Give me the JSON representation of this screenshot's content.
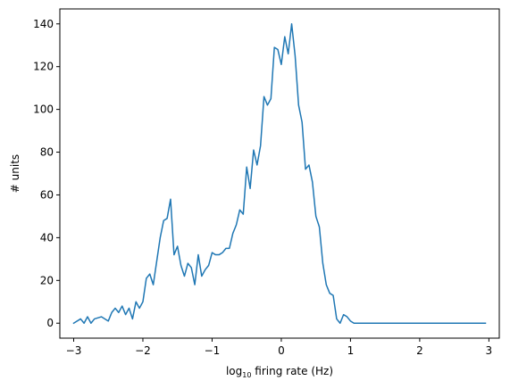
{
  "chart_data": {
    "type": "line",
    "title": "",
    "xlabel_prefix": "log",
    "xlabel_sub": "10",
    "xlabel_suffix": " firing rate (Hz)",
    "ylabel": "# units",
    "xlim": [
      -3.2,
      3.15
    ],
    "ylim": [
      -7,
      147
    ],
    "xticks": [
      -3,
      -2,
      -1,
      0,
      1,
      2,
      3
    ],
    "xtick_labels": [
      "−3",
      "−2",
      "−1",
      "0",
      "1",
      "2",
      "3"
    ],
    "yticks": [
      0,
      20,
      40,
      60,
      80,
      100,
      120,
      140
    ],
    "ytick_labels": [
      "0",
      "20",
      "40",
      "60",
      "80",
      "100",
      "120",
      "140"
    ],
    "grid": false,
    "series": [
      {
        "color": "#1f77b4",
        "x": [
          -3.0,
          -2.9,
          -2.85,
          -2.8,
          -2.75,
          -2.7,
          -2.6,
          -2.5,
          -2.45,
          -2.4,
          -2.35,
          -2.3,
          -2.25,
          -2.2,
          -2.15,
          -2.1,
          -2.05,
          -2.0,
          -1.95,
          -1.9,
          -1.85,
          -1.8,
          -1.75,
          -1.7,
          -1.65,
          -1.6,
          -1.55,
          -1.5,
          -1.45,
          -1.4,
          -1.35,
          -1.3,
          -1.25,
          -1.2,
          -1.15,
          -1.1,
          -1.05,
          -1.0,
          -0.95,
          -0.9,
          -0.85,
          -0.8,
          -0.75,
          -0.7,
          -0.65,
          -0.6,
          -0.55,
          -0.5,
          -0.45,
          -0.4,
          -0.35,
          -0.3,
          -0.25,
          -0.2,
          -0.15,
          -0.1,
          -0.05,
          0.0,
          0.05,
          0.1,
          0.15,
          0.2,
          0.25,
          0.3,
          0.35,
          0.4,
          0.45,
          0.5,
          0.55,
          0.6,
          0.65,
          0.7,
          0.75,
          0.8,
          0.85,
          0.9,
          0.95,
          1.0,
          1.05,
          1.1,
          1.15,
          1.2,
          1.25,
          1.3,
          1.35,
          1.4,
          1.45,
          1.5,
          1.55,
          1.6,
          1.65,
          1.7,
          1.75,
          1.8,
          1.9,
          2.0,
          2.5,
          2.95
        ],
        "y": [
          0,
          2,
          0,
          3,
          0,
          2,
          3,
          1,
          5,
          7,
          5,
          8,
          4,
          7,
          2,
          10,
          7,
          10,
          21,
          23,
          18,
          29,
          40,
          48,
          49,
          58,
          32,
          36,
          27,
          22,
          28,
          26,
          18,
          32,
          22,
          25,
          27,
          33,
          32,
          32,
          33,
          35,
          35,
          42,
          46,
          53,
          51,
          73,
          63,
          81,
          74,
          83,
          106,
          102,
          105,
          129,
          128,
          121,
          134,
          126,
          140,
          125,
          102,
          94,
          72,
          74,
          66,
          50,
          45,
          28,
          18,
          14,
          13,
          2,
          0,
          4,
          3,
          1,
          0,
          0,
          0,
          0,
          0,
          0,
          0,
          0,
          0,
          0,
          0,
          0,
          0,
          0,
          0,
          0,
          0,
          0,
          0,
          0
        ]
      }
    ]
  }
}
